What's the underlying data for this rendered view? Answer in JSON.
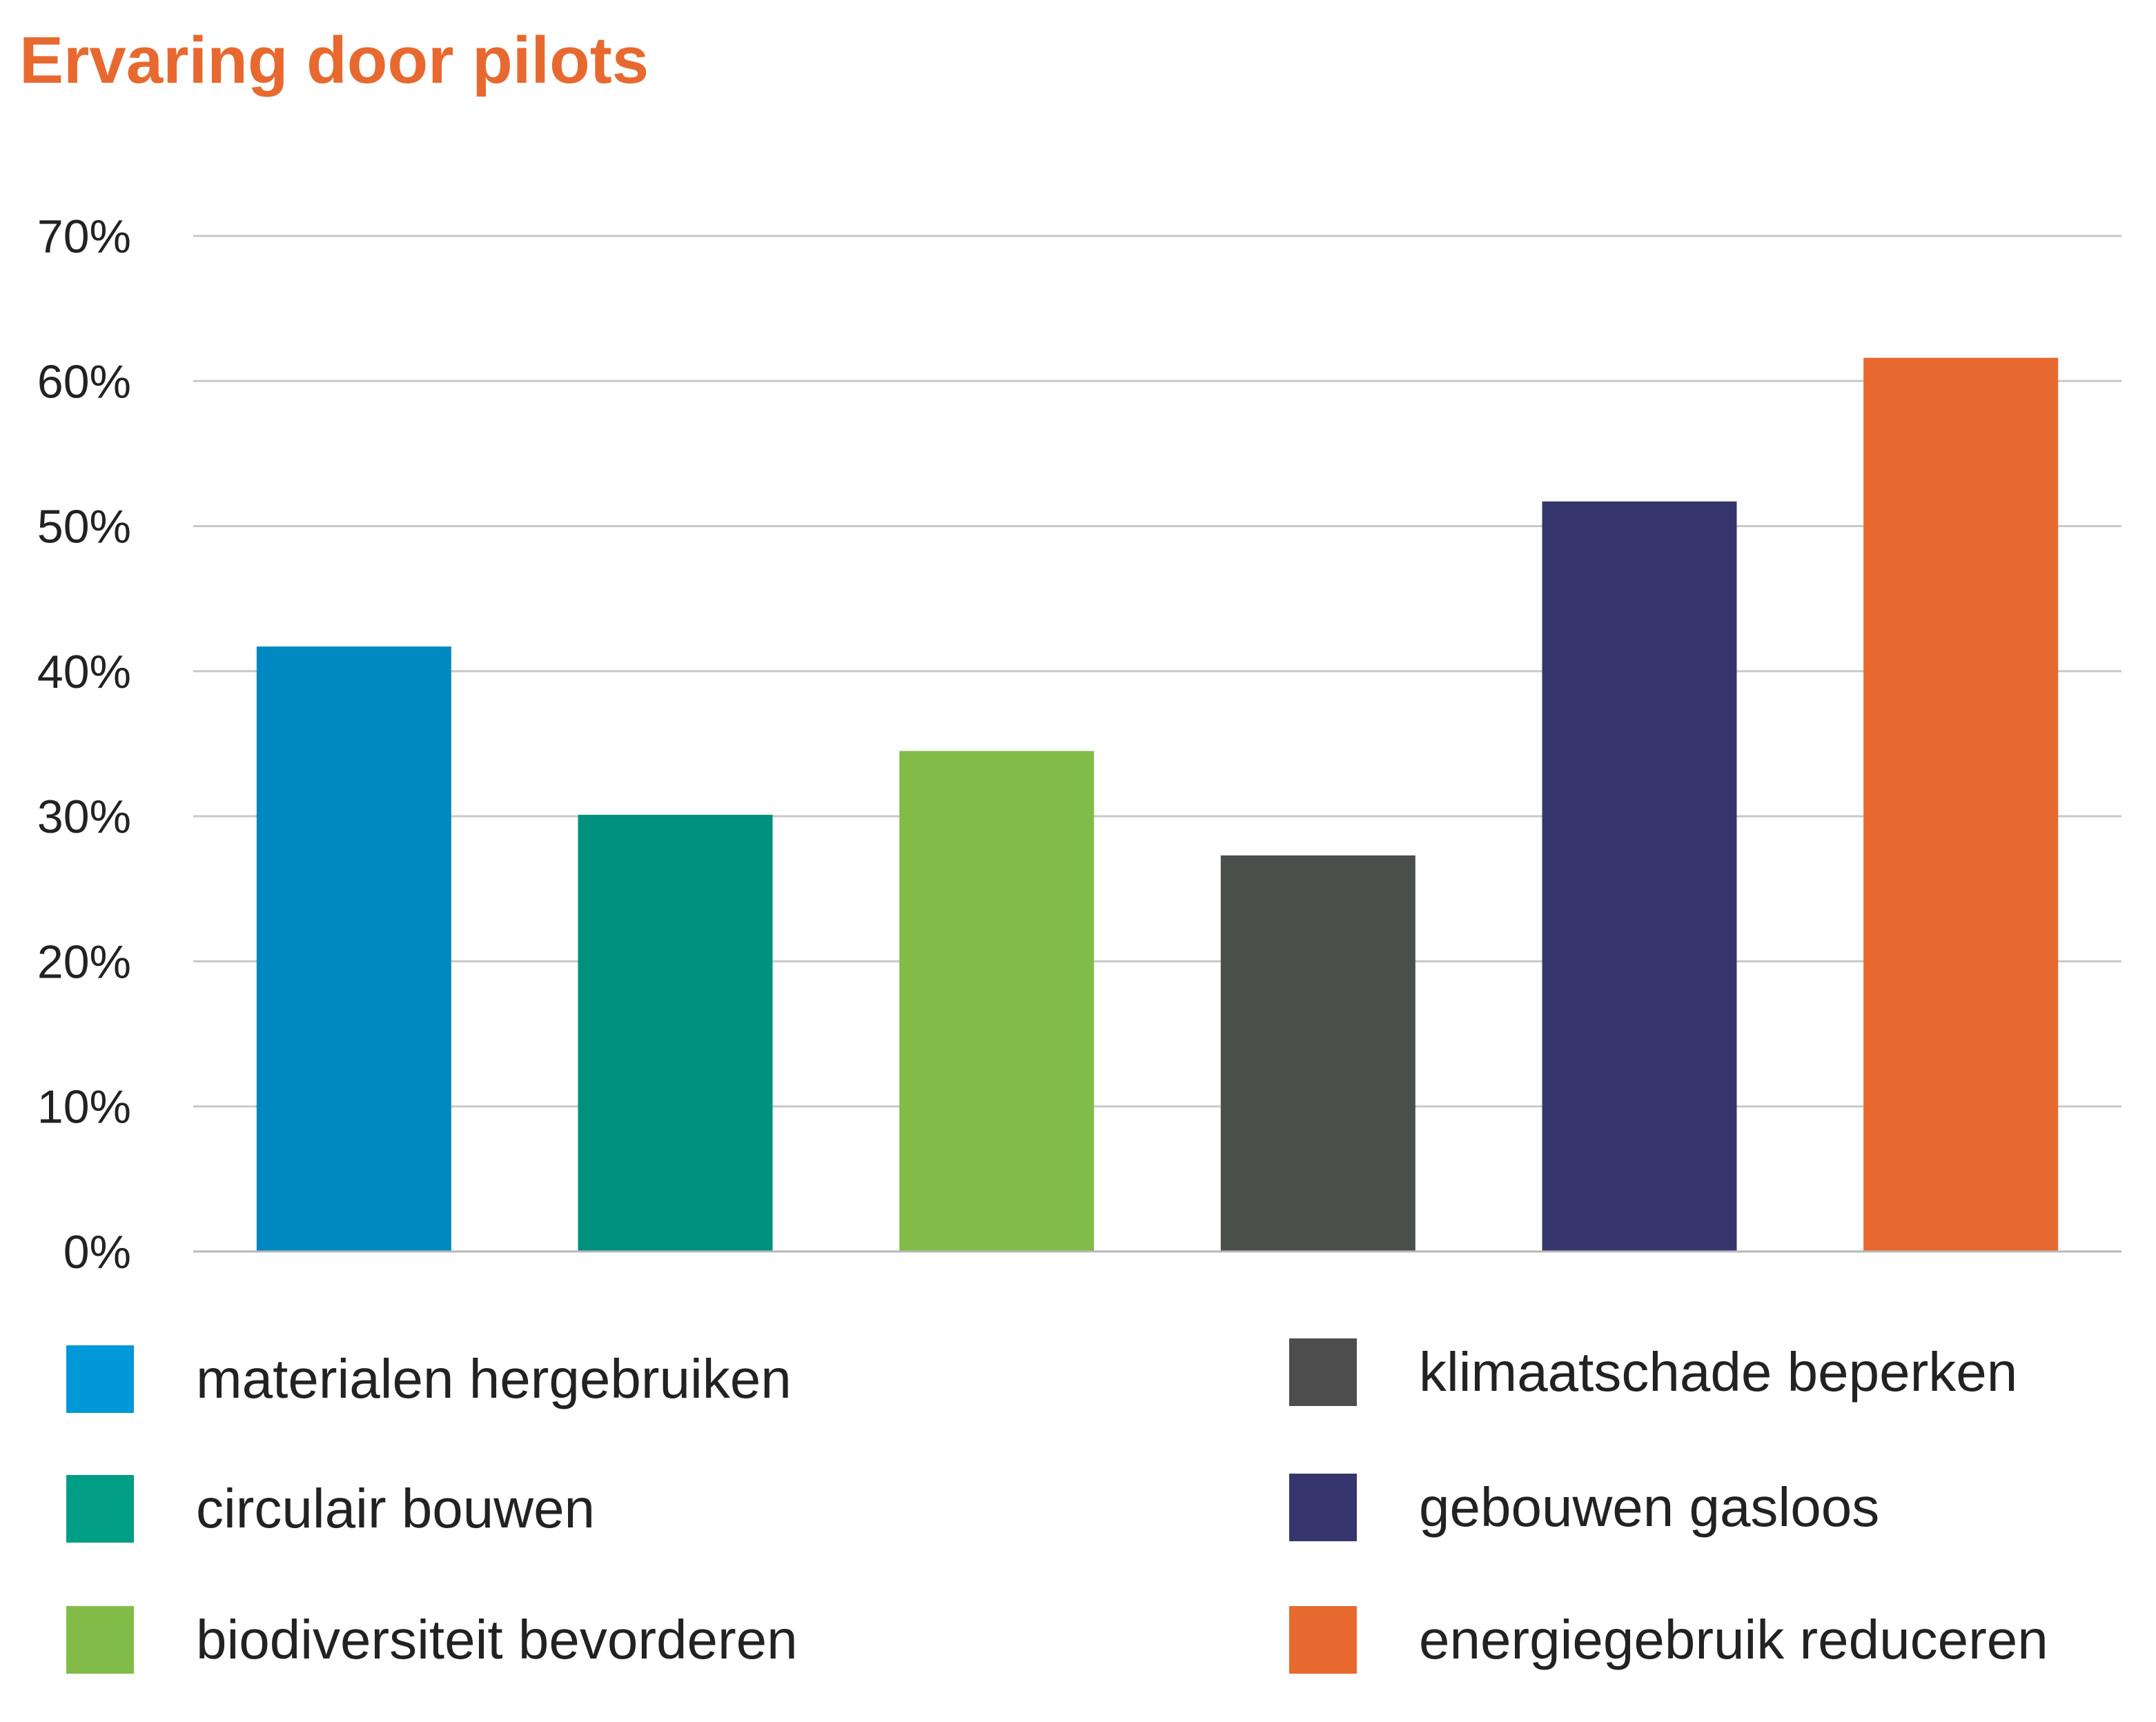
{
  "chart_data": {
    "type": "bar",
    "title": "Ervaring door pilots",
    "categories": [
      "materialen hergebruiken",
      "circulair bouwen",
      "biodiversiteit bevorderen",
      "klimaatschade beperken",
      "gebouwen gasloos",
      "energiegebruik reduceren"
    ],
    "values": [
      41.7,
      30.1,
      34.5,
      27.3,
      51.7,
      61.6
    ],
    "colors": [
      "#0088c0",
      "#009080",
      "#82bc48",
      "#4a4f4c",
      "#36366e",
      "#e8692f"
    ],
    "ylim": [
      0,
      70
    ],
    "yticks": [
      0,
      10,
      20,
      30,
      40,
      50,
      60,
      70
    ],
    "ytick_labels": [
      "0%",
      "10%",
      "20%",
      "30%",
      "40%",
      "50%",
      "60%",
      "70%"
    ],
    "xlabel": "",
    "ylabel": "",
    "grid": true,
    "legend_position": "bottom",
    "legend_colors": [
      "#0098d6",
      "#009e84",
      "#82bc48",
      "#4d4d4d",
      "#36366e",
      "#e8692f"
    ]
  }
}
